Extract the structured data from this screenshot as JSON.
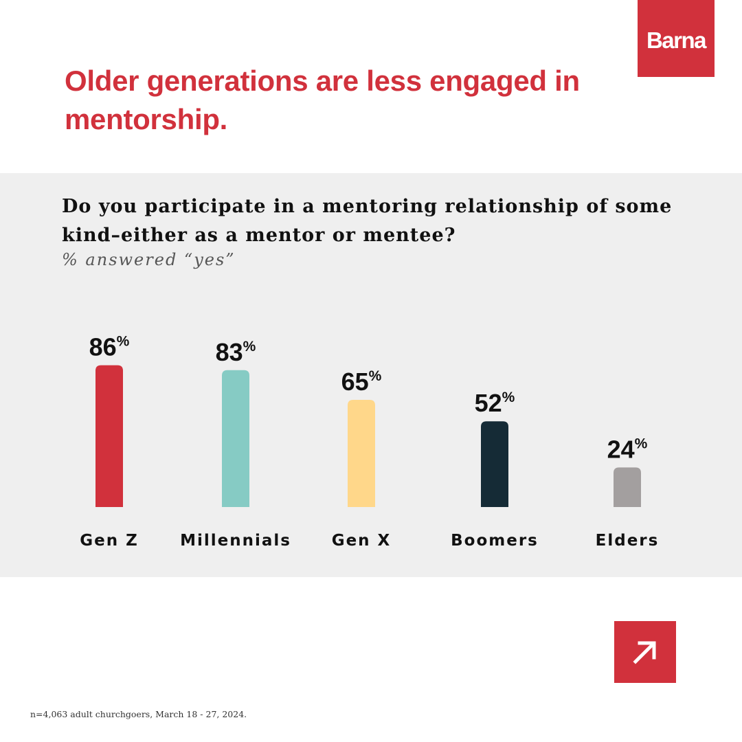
{
  "brand": {
    "name": "Barna",
    "color": "#d1313c"
  },
  "headline": "Older generations are less engaged in mentorship.",
  "chart_data": {
    "type": "bar",
    "title": "Do you participate in a mentoring relationship of some kind–either as a mentor or mentee?",
    "subtitle": "% answered “yes”",
    "categories": [
      "Gen Z",
      "Millennials",
      "Gen X",
      "Boomers",
      "Elders"
    ],
    "values": [
      86,
      83,
      65,
      52,
      24
    ],
    "value_suffix": "%",
    "colors": [
      "#d1313c",
      "#86cbc4",
      "#ffd78a",
      "#152b36",
      "#a39f9f"
    ],
    "xlabel": "",
    "ylabel": "",
    "ylim": [
      0,
      100
    ],
    "grid": false,
    "legend": "none"
  },
  "cta_icon": "arrow-up-right-icon",
  "footnote": "n=4,063 adult churchgoers, March 18 - 27, 2024."
}
